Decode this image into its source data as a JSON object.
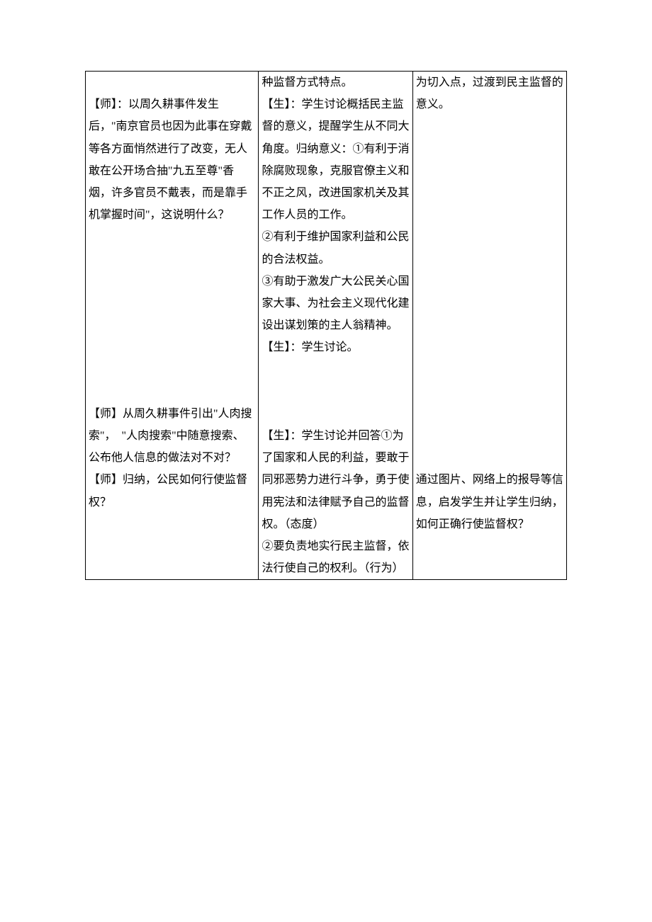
{
  "table": {
    "border_color": "#000000",
    "background_color": "#ffffff",
    "text_color": "#000000",
    "font_size_pt": 12,
    "columns": [
      {
        "width_pct": 36
      },
      {
        "width_pct": 32
      },
      {
        "width_pct": 32
      }
    ],
    "rows": [
      {
        "col1": {
          "blocks": [
            "",
            "【师】：以周久耕事件发生后，\"南京官员也因为此事在穿戴等各方面悄然进行了改变，无人敢在公开场合抽\"九五至尊\"香烟，许多官员不戴表，而是靠手机掌握时间\"，这说明什么？",
            "",
            "",
            "",
            "",
            "",
            "",
            "",
            "",
            "【师】从周久耕事件引出\"人肉搜索\"，　\"人肉搜索\"中随意搜索、公布他人信息的做法对不对？",
            "【师】归纳，公民如何行使监督权？"
          ]
        },
        "col2": {
          "blocks": [
            "种监督方式特点。",
            "【生】：学生讨论概括民主监督的意义，提醒学生从不同大角度。归纳意义：①有利于消除腐败现象，克服官僚主义和不正之风，改进国家机关及其工作人员的工作。",
            "②有利于维护国家利益和公民的合法权益。",
            "③有助于激发广大公民关心国家大事、为社会主义现代化建设出谋划策的主人翁精神。",
            "【生】：学生讨论。",
            "",
            "",
            "",
            "【生】：学生讨论并回答①为了国家和人民的利益，要敢于同邪恶势力进行斗争，勇于使用宪法和法律赋予自己的监督权。（态度）",
            "②要负责地实行民主监督，依法行使自己的权利。（行为）"
          ]
        },
        "col3": {
          "blocks": [
            "为切入点，过渡到民主监督的意义。",
            "",
            "",
            "",
            "",
            "",
            "",
            "",
            "",
            "",
            "",
            "",
            "",
            "",
            "",
            "",
            "",
            "通过图片、网络上的报导等信息，启发学生并让学生归纳，如何正确行使监督权？"
          ]
        }
      }
    ]
  }
}
